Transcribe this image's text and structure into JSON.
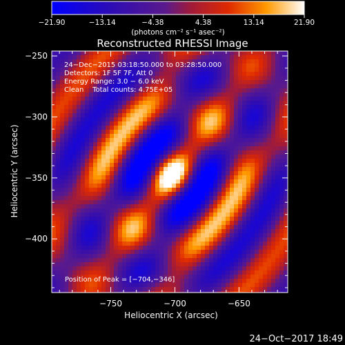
{
  "chart_data": {
    "type": "heatmap",
    "title": "Reconstructed RHESSI Image",
    "xlabel": "Heliocentric X (arcsec)",
    "ylabel": "Heliocentric Y (arcsec)",
    "xlim": [
      -796,
      -612
    ],
    "ylim": [
      -444,
      -246
    ],
    "xticks": [
      -750,
      -700,
      -650
    ],
    "xtick_labels": [
      "−750",
      "−700",
      "−650"
    ],
    "yticks": [
      -250,
      -300,
      -350,
      -400
    ],
    "ytick_labels": [
      "−250",
      "−300",
      "−350",
      "−400"
    ],
    "colorbar": {
      "range": [
        -21.9,
        21.9
      ],
      "ticks": [
        -21.9,
        -13.14,
        -4.38,
        4.38,
        13.14,
        21.9
      ],
      "tick_labels": [
        "−21.90",
        "−13.14",
        "−4.38",
        "4.38",
        "13.14",
        "21.90"
      ],
      "unit": "(photons cm⁻² s⁻¹ asec⁻²)"
    },
    "annotations": [
      "24−Dec−2015 03:18:50.000 to 03:28:50.000",
      "Detectors: 1F 5F 7F, Att 0",
      "Energy Range: 3.0 − 6.0 keV",
      "Clean    Total counts: 4.75E+05"
    ],
    "peak_label": "Position of Peak = [−704,−346]",
    "peak": [
      -704,
      -346
    ],
    "grid": false
  },
  "footer": {
    "timestamp": "24−Oct−2017 18:49"
  }
}
